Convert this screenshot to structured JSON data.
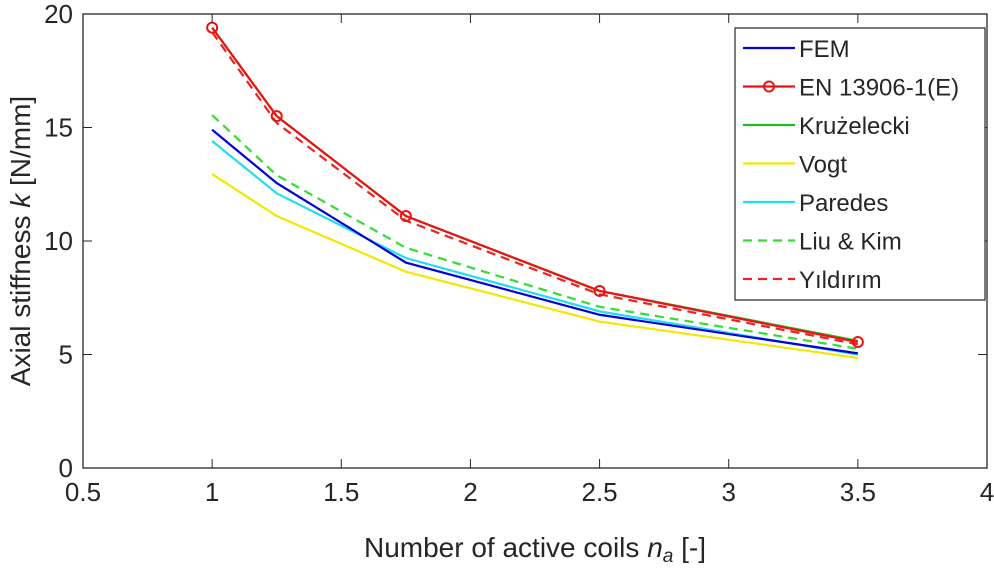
{
  "chart_data": {
    "type": "line",
    "xlabel": "Number of active coils",
    "xlabel_symbol": "n",
    "xlabel_subscript": "a",
    "xlabel_unit": "[-]",
    "ylabel": "Axial stiffness",
    "ylabel_symbol": "k",
    "ylabel_unit": "[N/mm]",
    "xlim": [
      0.5,
      4
    ],
    "ylim": [
      0,
      20
    ],
    "xticks": [
      0.5,
      1,
      1.5,
      2,
      2.5,
      3,
      3.5,
      4
    ],
    "xtick_labels": [
      "0.5",
      "1",
      "1.5",
      "2",
      "2.5",
      "3",
      "3.5",
      "4"
    ],
    "yticks": [
      0,
      5,
      10,
      15,
      20
    ],
    "ytick_labels": [
      "0",
      "5",
      "10",
      "15",
      "20"
    ],
    "grid": false,
    "legend_placement": "top-right",
    "x": [
      1,
      1.25,
      1.75,
      2.5,
      3.5
    ],
    "series": [
      {
        "name": "FEM",
        "color": "#0000dd",
        "dash": "solid",
        "marker": "none",
        "values": [
          14.9,
          12.55,
          9.05,
          6.75,
          5.05
        ]
      },
      {
        "name": "EN 13906-1(E)",
        "color": "#ee1111",
        "dash": "solid",
        "marker": "circle",
        "values": [
          19.4,
          15.5,
          11.1,
          7.8,
          5.55
        ]
      },
      {
        "name": "Krużelecki",
        "color": "#22bb22",
        "dash": "solid",
        "marker": "none",
        "values": [
          19.4,
          15.5,
          11.1,
          7.8,
          5.6
        ]
      },
      {
        "name": "Vogt",
        "color": "#f5e600",
        "dash": "solid",
        "marker": "none",
        "values": [
          12.95,
          11.1,
          8.65,
          6.45,
          4.85
        ]
      },
      {
        "name": "Paredes",
        "color": "#22ddee",
        "dash": "solid",
        "marker": "none",
        "values": [
          14.4,
          12.1,
          9.25,
          6.9,
          5.0
        ]
      },
      {
        "name": "Liu & Kim",
        "color": "#33dd33",
        "dash": "dashed",
        "marker": "none",
        "values": [
          15.55,
          12.9,
          9.7,
          7.1,
          5.25
        ]
      },
      {
        "name": "Yıldırım",
        "color": "#ee2222",
        "dash": "dashed",
        "marker": "none",
        "values": [
          19.2,
          15.2,
          10.9,
          7.65,
          5.45
        ]
      }
    ]
  }
}
